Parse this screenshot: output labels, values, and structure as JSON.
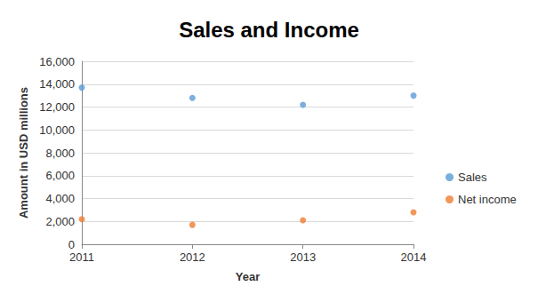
{
  "chart_data": {
    "type": "scatter",
    "title": "Sales and Income",
    "x_label": "Year",
    "y_label": "Amount in USD millions",
    "x": [
      2011,
      2012,
      2013,
      2014
    ],
    "series": [
      {
        "name": "Sales",
        "color": "#5b9bd5",
        "values": [
          13700,
          12800,
          12200,
          13000
        ]
      },
      {
        "name": "Net income",
        "color": "#ed7d31",
        "values": [
          2200,
          1700,
          2100,
          2800
        ]
      }
    ],
    "xlim": [
      2011,
      2014
    ],
    "xticks": [
      2011,
      2012,
      2013,
      2014
    ],
    "ylim": [
      0,
      16000
    ],
    "yticks": [
      0,
      {
        "value": 2000,
        "label": "2,000"
      },
      {
        "value": 4000,
        "label": "4,000"
      },
      {
        "value": 6000,
        "label": "6,000"
      },
      {
        "value": 8000,
        "label": "8,000"
      },
      {
        "value": 10000,
        "label": "10,000"
      },
      {
        "value": 12000,
        "label": "12,000"
      },
      {
        "value": 14000,
        "label": "14,000"
      },
      {
        "value": 16000,
        "label": "16,000"
      }
    ],
    "grid": true,
    "legend": "right"
  }
}
